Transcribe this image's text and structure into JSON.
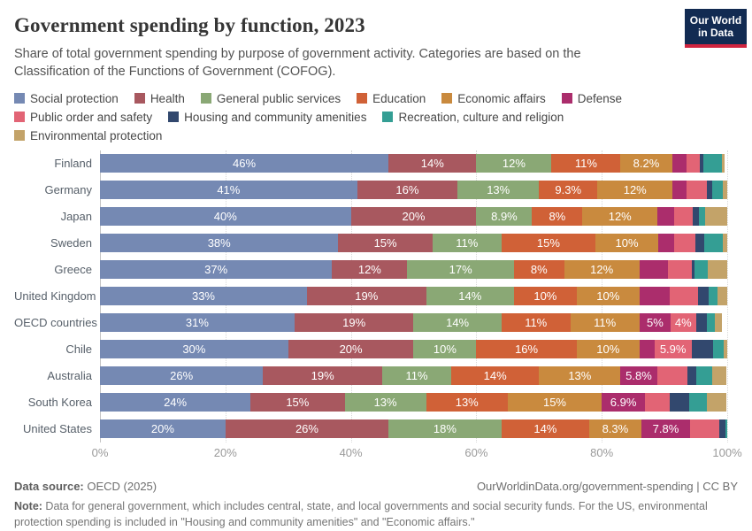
{
  "header": {
    "title": "Government spending by function, 2023",
    "subtitle": "Share of total government spending by purpose of government activity. Categories are based on the Classification of the Functions of Government (COFOG).",
    "logo": {
      "line1": "Our World",
      "line2": "in Data"
    }
  },
  "chart_data": {
    "type": "bar",
    "variant": "stacked-horizontal",
    "stacked": true,
    "unit": "%",
    "xlim": [
      0,
      100
    ],
    "x_ticks": [
      "0%",
      "20%",
      "40%",
      "60%",
      "80%",
      "100%"
    ],
    "grid": true,
    "legend_position": "top",
    "countries": [
      "Finland",
      "Germany",
      "Japan",
      "Sweden",
      "Greece",
      "United Kingdom",
      "OECD countries",
      "Chile",
      "Australia",
      "South Korea",
      "United States"
    ],
    "series": [
      {
        "name": "Social protection",
        "color": "#7589b3",
        "values": [
          46,
          41,
          40,
          38,
          37,
          33,
          31,
          30,
          26,
          24,
          20
        ],
        "labels": [
          "46%",
          "41%",
          "40%",
          "38%",
          "37%",
          "33%",
          "31%",
          "30%",
          "26%",
          "24%",
          "20%"
        ]
      },
      {
        "name": "Health",
        "color": "#a8585f",
        "values": [
          14,
          16,
          20,
          15,
          12,
          19,
          19,
          20,
          19,
          15,
          26
        ],
        "labels": [
          "14%",
          "16%",
          "20%",
          "15%",
          "12%",
          "19%",
          "19%",
          "20%",
          "19%",
          "15%",
          "26%"
        ]
      },
      {
        "name": "General public services",
        "color": "#8aa875",
        "values": [
          12,
          13,
          8.9,
          11,
          17,
          14,
          14,
          10,
          11,
          13,
          18
        ],
        "labels": [
          "12%",
          "13%",
          "8.9%",
          "11%",
          "17%",
          "14%",
          "14%",
          "10%",
          "11%",
          "13%",
          "18%"
        ]
      },
      {
        "name": "Education",
        "color": "#d06137",
        "values": [
          11,
          9.3,
          8,
          15,
          8,
          10,
          11,
          16,
          14,
          13,
          14
        ],
        "labels": [
          "11%",
          "9.3%",
          "8%",
          "15%",
          "8%",
          "10%",
          "11%",
          "16%",
          "14%",
          "13%",
          "14%"
        ]
      },
      {
        "name": "Economic affairs",
        "color": "#c98a3e",
        "values": [
          8.2,
          12,
          12,
          10,
          12,
          10,
          11,
          10,
          13,
          15,
          8.3
        ],
        "labels": [
          "8.2%",
          "12%",
          "12%",
          "10%",
          "12%",
          "10%",
          "11%",
          "10%",
          "13%",
          "15%",
          "8.3%"
        ]
      },
      {
        "name": "Defense",
        "color": "#ab2d6c",
        "values": [
          2.3,
          2.2,
          2.6,
          2.6,
          4.6,
          4.8,
          5,
          2.4,
          5.8,
          6.9,
          7.8
        ],
        "labels": [
          "",
          "",
          "",
          "",
          "",
          "",
          "5%",
          "",
          "5.8%",
          "6.9%",
          "7.8%"
        ]
      },
      {
        "name": "Public order and safety",
        "color": "#e26475",
        "values": [
          2.2,
          3.3,
          3,
          3.4,
          3.7,
          4.5,
          4,
          5.9,
          4.8,
          4,
          4.7
        ],
        "labels": [
          "",
          "",
          "",
          "",
          "",
          "",
          "4%",
          "5.9%",
          "",
          "",
          ""
        ]
      },
      {
        "name": "Housing and community amenities",
        "color": "#32486e",
        "values": [
          0.5,
          0.8,
          1,
          1.4,
          0.5,
          1.7,
          1.7,
          3.5,
          1.5,
          3.1,
          0.9
        ],
        "labels": [
          "",
          "",
          "",
          "",
          "",
          "",
          "",
          "",
          "",
          "",
          ""
        ]
      },
      {
        "name": "Recreation, culture and religion",
        "color": "#349e94",
        "values": [
          2.9,
          1.7,
          1,
          2.9,
          2.1,
          1.4,
          1.4,
          1.7,
          2.5,
          2.7,
          0.3
        ],
        "labels": [
          "",
          "",
          "",
          "",
          "",
          "",
          "",
          "",
          "",
          "",
          ""
        ]
      },
      {
        "name": "Environmental protection",
        "color": "#c3a369",
        "values": [
          0.5,
          0.7,
          3.5,
          0.7,
          3.1,
          1.6,
          1.1,
          0.5,
          2.2,
          3.2,
          0
        ],
        "labels": [
          "",
          "",
          "",
          "",
          "",
          "",
          "",
          "",
          "",
          "",
          ""
        ]
      }
    ]
  },
  "footer": {
    "source_label": "Data source:",
    "source_value": " OECD (2025)",
    "link": "OurWorldinData.org/government-spending | CC BY",
    "note_label": "Note:",
    "note_value": " Data for general government, which includes central, state, and local governments and social security funds. For the US, environmental protection spending is included in \"Housing and community amenities\" and \"Economic affairs.\""
  }
}
